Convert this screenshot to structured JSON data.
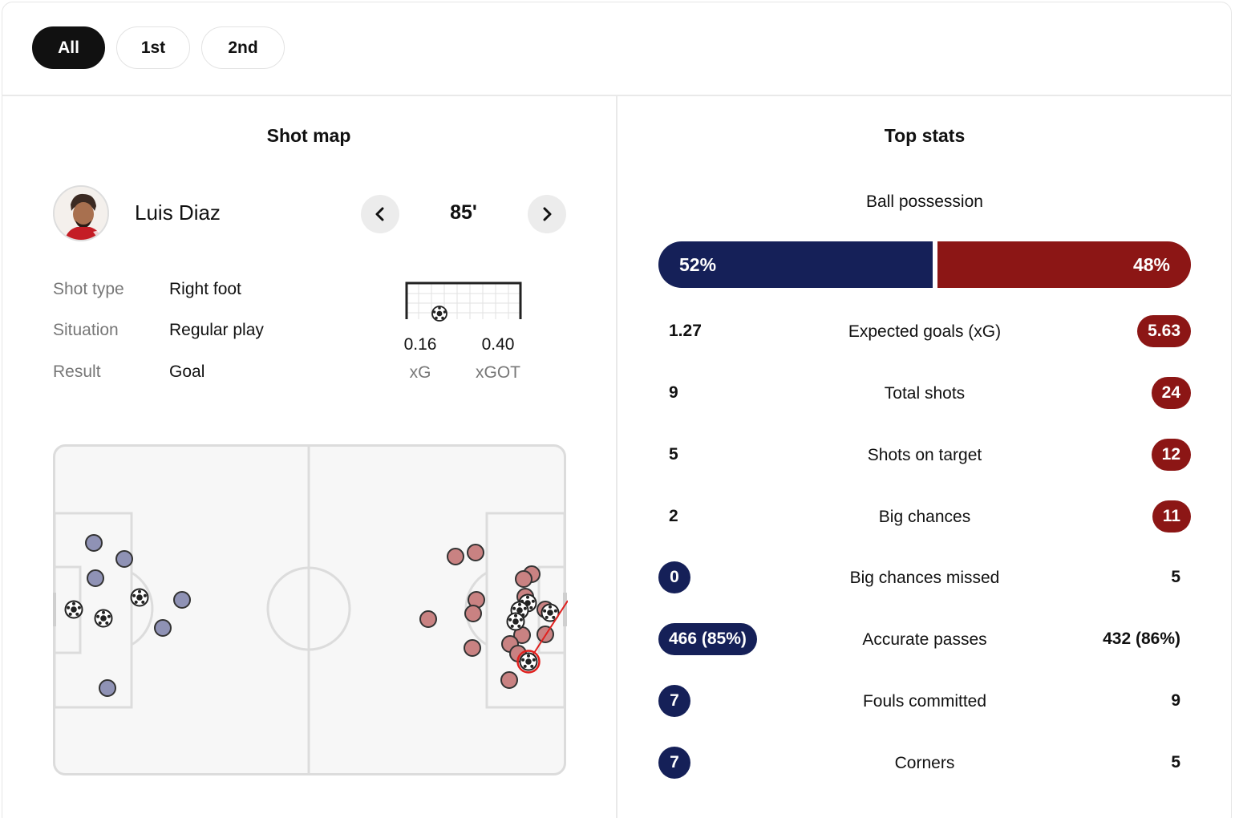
{
  "tabs": [
    {
      "label": "All",
      "active": true
    },
    {
      "label": "1st",
      "active": false
    },
    {
      "label": "2nd",
      "active": false
    }
  ],
  "shot_map": {
    "title": "Shot map",
    "player": {
      "name": "Luis Diaz",
      "avatar": "player-photo"
    },
    "minute": "85'",
    "details": [
      {
        "label": "Shot type",
        "value": "Right foot"
      },
      {
        "label": "Situation",
        "value": "Regular play"
      },
      {
        "label": "Result",
        "value": "Goal"
      }
    ],
    "xg": {
      "value": "0.16",
      "label": "xG"
    },
    "xgot": {
      "value": "0.40",
      "label": "xGOT"
    },
    "colors": {
      "home_shot": "#8f92b5",
      "away_shot": "#c98282",
      "selected_ring": "#e0201e"
    }
  },
  "top_stats": {
    "title": "Top stats",
    "possession": {
      "label": "Ball possession",
      "home": "52%",
      "away": "48%",
      "home_pct": 52,
      "away_pct": 48
    },
    "rows": [
      {
        "label": "Expected goals (xG)",
        "home": "1.27",
        "away": "5.63",
        "highlight": "away"
      },
      {
        "label": "Total shots",
        "home": "9",
        "away": "24",
        "highlight": "away"
      },
      {
        "label": "Shots on target",
        "home": "5",
        "away": "12",
        "highlight": "away"
      },
      {
        "label": "Big chances",
        "home": "2",
        "away": "11",
        "highlight": "away"
      },
      {
        "label": "Big chances missed",
        "home": "0",
        "away": "5",
        "highlight": "home"
      },
      {
        "label": "Accurate passes",
        "home": "466 (85%)",
        "away": "432 (86%)",
        "highlight": "home"
      },
      {
        "label": "Fouls committed",
        "home": "7",
        "away": "9",
        "highlight": "home"
      },
      {
        "label": "Corners",
        "home": "7",
        "away": "5",
        "highlight": "home"
      }
    ],
    "colors": {
      "home": "#152058",
      "away": "#8c1615"
    }
  }
}
